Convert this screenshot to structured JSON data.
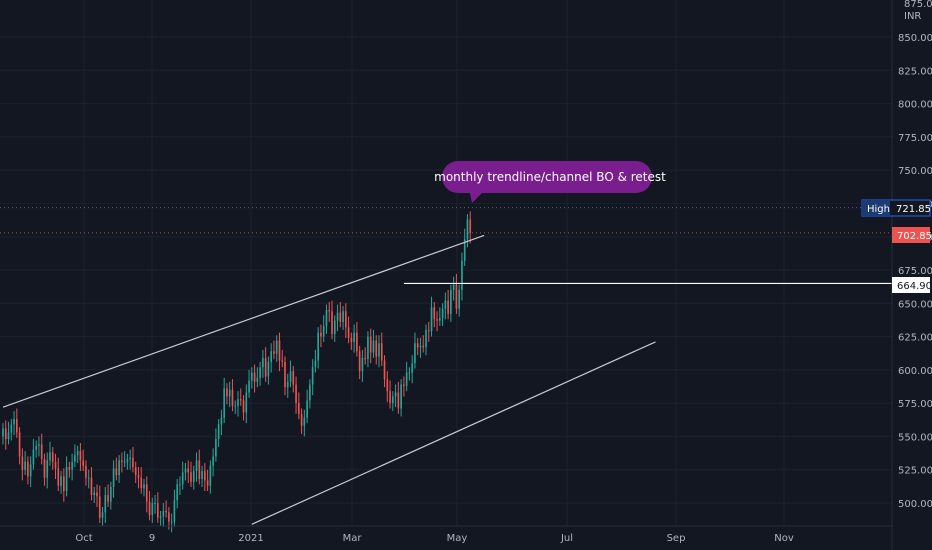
{
  "chart_data": {
    "type": "candlestick",
    "title": "",
    "currency": "INR",
    "y_axis": {
      "min": 485,
      "max": 875,
      "ticks": [
        500,
        525,
        550,
        575,
        600,
        625,
        650,
        675,
        700,
        725,
        750,
        775,
        800,
        825,
        850
      ],
      "tick_labels": [
        "500.00",
        "525.00",
        "550.00",
        "575.00",
        "600.00",
        "625.00",
        "650.00",
        "675.00",
        "700.00",
        "725.00",
        "750.00",
        "775.00",
        "800.00",
        "825.00",
        "850.00"
      ],
      "top_label": "875.00"
    },
    "x_axis": {
      "labels": [
        "Oct",
        "9",
        "2021",
        "Mar",
        "May",
        "Jul",
        "Sep",
        "Nov"
      ]
    },
    "price_markers": {
      "high": {
        "label": "High",
        "value": 721.85,
        "text": "721.85"
      },
      "last": {
        "value": 702.85,
        "text": "702.85"
      },
      "level": {
        "value": 664.9,
        "text": "664.90"
      }
    },
    "annotation": "monthly trendline/channel BO & retest",
    "trendlines": [
      {
        "name": "upper-channel-line",
        "from": [
          0,
          572
        ],
        "to": [
          174,
          701
        ]
      },
      {
        "name": "lower-channel-line",
        "from": [
          90,
          484
        ],
        "to": [
          236,
          621
        ]
      }
    ],
    "candles": [
      [
        550,
        556
      ],
      [
        556,
        548
      ],
      [
        548,
        553
      ],
      [
        553,
        559
      ],
      [
        559,
        563
      ],
      [
        563,
        553
      ],
      [
        553,
        535
      ],
      [
        535,
        525
      ],
      [
        525,
        531
      ],
      [
        531,
        520
      ],
      [
        520,
        529
      ],
      [
        529,
        540
      ],
      [
        540,
        543
      ],
      [
        543,
        544
      ],
      [
        544,
        533
      ],
      [
        533,
        519
      ],
      [
        519,
        532
      ],
      [
        532,
        538
      ],
      [
        538,
        531
      ],
      [
        531,
        526
      ],
      [
        526,
        513
      ],
      [
        513,
        520
      ],
      [
        520,
        509
      ],
      [
        509,
        527
      ],
      [
        527,
        525
      ],
      [
        525,
        531
      ],
      [
        531,
        536
      ],
      [
        536,
        539
      ],
      [
        539,
        532
      ],
      [
        532,
        528
      ],
      [
        528,
        519
      ],
      [
        519,
        519
      ],
      [
        519,
        506
      ],
      [
        506,
        508
      ],
      [
        508,
        505
      ],
      [
        505,
        489
      ],
      [
        489,
        493
      ],
      [
        493,
        506
      ],
      [
        506,
        501
      ],
      [
        501,
        512
      ],
      [
        512,
        526
      ],
      [
        526,
        521
      ],
      [
        521,
        532
      ],
      [
        532,
        531
      ],
      [
        531,
        531
      ],
      [
        531,
        533
      ],
      [
        533,
        534
      ],
      [
        534,
        527
      ],
      [
        527,
        521
      ],
      [
        521,
        519
      ],
      [
        519,
        511
      ],
      [
        511,
        514
      ],
      [
        514,
        501
      ],
      [
        501,
        491
      ],
      [
        491,
        500
      ],
      [
        500,
        500
      ],
      [
        500,
        489
      ],
      [
        489,
        490
      ],
      [
        490,
        494
      ],
      [
        494,
        493
      ],
      [
        493,
        486
      ],
      [
        486,
        486
      ],
      [
        486,
        502
      ],
      [
        502,
        514
      ],
      [
        514,
        514
      ],
      [
        514,
        523
      ],
      [
        523,
        526
      ],
      [
        526,
        523
      ],
      [
        523,
        516
      ],
      [
        516,
        524
      ],
      [
        524,
        532
      ],
      [
        532,
        518
      ],
      [
        518,
        524
      ],
      [
        524,
        517
      ],
      [
        517,
        513
      ],
      [
        513,
        528
      ],
      [
        528,
        535
      ],
      [
        535,
        548
      ],
      [
        548,
        559
      ],
      [
        559,
        564
      ],
      [
        564,
        586
      ],
      [
        586,
        580
      ],
      [
        580,
        585
      ],
      [
        585,
        573
      ],
      [
        573,
        573
      ],
      [
        573,
        578
      ],
      [
        578,
        577
      ],
      [
        577,
        568
      ],
      [
        568,
        583
      ],
      [
        583,
        592
      ],
      [
        592,
        598
      ],
      [
        598,
        591
      ],
      [
        591,
        594
      ],
      [
        594,
        602
      ],
      [
        602,
        609
      ],
      [
        609,
        595
      ],
      [
        595,
        606
      ],
      [
        606,
        614
      ],
      [
        614,
        612
      ],
      [
        612,
        622
      ],
      [
        622,
        607
      ],
      [
        607,
        606
      ],
      [
        606,
        587
      ],
      [
        587,
        591
      ],
      [
        591,
        599
      ],
      [
        599,
        589
      ],
      [
        589,
        575
      ],
      [
        575,
        567
      ],
      [
        567,
        558
      ],
      [
        558,
        564
      ],
      [
        564,
        577
      ],
      [
        577,
        589
      ],
      [
        589,
        602
      ],
      [
        602,
        607
      ],
      [
        607,
        628
      ],
      [
        628,
        625
      ],
      [
        625,
        633
      ],
      [
        633,
        645
      ],
      [
        645,
        644
      ],
      [
        644,
        627
      ],
      [
        627,
        637
      ],
      [
        637,
        643
      ],
      [
        643,
        636
      ],
      [
        636,
        644
      ],
      [
        644,
        632
      ],
      [
        632,
        624
      ],
      [
        624,
        621
      ],
      [
        621,
        628
      ],
      [
        628,
        614
      ],
      [
        614,
        599
      ],
      [
        599,
        609
      ],
      [
        609,
        608
      ],
      [
        608,
        625
      ],
      [
        625,
        613
      ],
      [
        613,
        622
      ],
      [
        622,
        610
      ],
      [
        610,
        620
      ],
      [
        620,
        607
      ],
      [
        607,
        593
      ],
      [
        593,
        584
      ],
      [
        584,
        575
      ],
      [
        575,
        580
      ],
      [
        580,
        583
      ],
      [
        583,
        571
      ],
      [
        571,
        589
      ],
      [
        589,
        588
      ],
      [
        588,
        598
      ],
      [
        598,
        598
      ],
      [
        598,
        605
      ],
      [
        605,
        620
      ],
      [
        620,
        617
      ],
      [
        617,
        618
      ],
      [
        618,
        617
      ],
      [
        617,
        630
      ],
      [
        630,
        629
      ],
      [
        629,
        647
      ],
      [
        647,
        638
      ],
      [
        638,
        637
      ],
      [
        637,
        639
      ],
      [
        639,
        646
      ],
      [
        646,
        652
      ],
      [
        652,
        642
      ],
      [
        642,
        660
      ],
      [
        660,
        664
      ],
      [
        664,
        646
      ],
      [
        646,
        660
      ],
      [
        660,
        682
      ],
      [
        682,
        698
      ],
      [
        698,
        713
      ],
      [
        713,
        703
      ]
    ]
  }
}
